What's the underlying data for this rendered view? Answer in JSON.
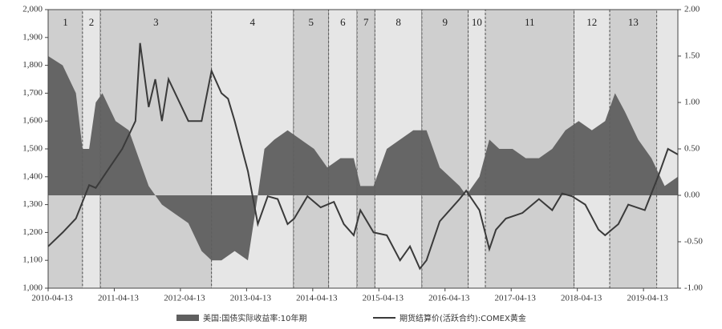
{
  "chart_data": {
    "type": "area-line",
    "xlim": [
      2010.28,
      2019.8
    ],
    "xticks": [
      {
        "value": 2010.28,
        "label": "2010-04-13"
      },
      {
        "value": 2011.28,
        "label": "2011-04-13"
      },
      {
        "value": 2012.28,
        "label": "2012-04-13"
      },
      {
        "value": 2013.28,
        "label": "2013-04-13"
      },
      {
        "value": 2014.28,
        "label": "2014-04-13"
      },
      {
        "value": 2015.28,
        "label": "2015-04-13"
      },
      {
        "value": 2016.28,
        "label": "2016-04-13"
      },
      {
        "value": 2017.28,
        "label": "2017-04-13"
      },
      {
        "value": 2018.28,
        "label": "2018-04-13"
      },
      {
        "value": 2019.28,
        "label": "2019-04-13"
      }
    ],
    "ylim": [
      1000,
      2000
    ],
    "yticks": [
      {
        "value": 1000,
        "label": "1,000"
      },
      {
        "value": 1100,
        "label": "1,100"
      },
      {
        "value": 1200,
        "label": "1,200"
      },
      {
        "value": 1300,
        "label": "1,300"
      },
      {
        "value": 1400,
        "label": "1,400"
      },
      {
        "value": 1500,
        "label": "1,500"
      },
      {
        "value": 1600,
        "label": "1,600"
      },
      {
        "value": 1700,
        "label": "1,700"
      },
      {
        "value": 1800,
        "label": "1,800"
      },
      {
        "value": 1900,
        "label": "1,900"
      },
      {
        "value": 2000,
        "label": "2,000"
      }
    ],
    "y2lim": [
      -1,
      2
    ],
    "y2ticks": [
      {
        "value": -1,
        "label": "-1.00"
      },
      {
        "value": -0.5,
        "label": "-0.50"
      },
      {
        "value": 0,
        "label": "0.00"
      },
      {
        "value": 0.5,
        "label": "0.50"
      },
      {
        "value": 1,
        "label": "1.00"
      },
      {
        "value": 1.5,
        "label": "1.50"
      },
      {
        "value": 2,
        "label": "2.00"
      }
    ],
    "periods": [
      {
        "label": "1",
        "start": 2010.28,
        "end": 2010.8
      },
      {
        "label": "2",
        "start": 2010.8,
        "end": 2011.07
      },
      {
        "label": "3",
        "start": 2011.07,
        "end": 2012.75
      },
      {
        "label": "4",
        "start": 2012.75,
        "end": 2013.99
      },
      {
        "label": "5",
        "start": 2013.99,
        "end": 2014.52
      },
      {
        "label": "6",
        "start": 2014.52,
        "end": 2014.95
      },
      {
        "label": "7",
        "start": 2014.95,
        "end": 2015.22
      },
      {
        "label": "8",
        "start": 2015.22,
        "end": 2015.93
      },
      {
        "label": "9",
        "start": 2015.93,
        "end": 2016.63
      },
      {
        "label": "10",
        "start": 2016.63,
        "end": 2016.89
      },
      {
        "label": "11",
        "start": 2016.89,
        "end": 2018.23
      },
      {
        "label": "12",
        "start": 2018.23,
        "end": 2018.77
      },
      {
        "label": "13",
        "start": 2018.77,
        "end": 2019.48
      }
    ],
    "series": [
      {
        "name": "美国:国债实际收益率:10年期",
        "kind": "area",
        "axis": "y2",
        "color": "#5f5f5f",
        "x": [
          2010.28,
          2010.5,
          2010.7,
          2010.8,
          2010.9,
          2011.0,
          2011.1,
          2011.3,
          2011.5,
          2011.7,
          2011.8,
          2011.9,
          2012.0,
          2012.2,
          2012.4,
          2012.6,
          2012.75,
          2012.9,
          2013.1,
          2013.3,
          2013.45,
          2013.55,
          2013.7,
          2013.9,
          2014.1,
          2014.3,
          2014.5,
          2014.7,
          2014.9,
          2015.0,
          2015.2,
          2015.4,
          2015.6,
          2015.8,
          2016.0,
          2016.2,
          2016.5,
          2016.6,
          2016.8,
          2016.95,
          2017.1,
          2017.3,
          2017.5,
          2017.7,
          2017.9,
          2018.1,
          2018.3,
          2018.5,
          2018.7,
          2018.85,
          2019.0,
          2019.2,
          2019.4,
          2019.6,
          2019.8
        ],
        "values": [
          1.5,
          1.4,
          1.1,
          0.5,
          0.5,
          1.0,
          1.1,
          0.8,
          0.7,
          0.3,
          0.1,
          0.0,
          -0.1,
          -0.2,
          -0.3,
          -0.6,
          -0.7,
          -0.7,
          -0.6,
          -0.7,
          0.0,
          0.5,
          0.6,
          0.7,
          0.6,
          0.5,
          0.3,
          0.4,
          0.4,
          0.1,
          0.1,
          0.5,
          0.6,
          0.7,
          0.7,
          0.3,
          0.1,
          0.0,
          0.2,
          0.6,
          0.5,
          0.5,
          0.4,
          0.4,
          0.5,
          0.7,
          0.8,
          0.7,
          0.8,
          1.1,
          0.9,
          0.6,
          0.4,
          0.1,
          0.2
        ]
      },
      {
        "name": "期货结算价(活跃合约):COMEX黄金",
        "kind": "line",
        "axis": "y",
        "color": "#3a3a3a",
        "x": [
          2010.28,
          2010.5,
          2010.7,
          2010.9,
          2011.0,
          2011.2,
          2011.4,
          2011.6,
          2011.67,
          2011.8,
          2011.9,
          2012.0,
          2012.1,
          2012.3,
          2012.4,
          2012.6,
          2012.75,
          2012.9,
          2013.0,
          2013.1,
          2013.3,
          2013.45,
          2013.6,
          2013.75,
          2013.9,
          2014.0,
          2014.2,
          2014.4,
          2014.6,
          2014.75,
          2014.9,
          2015.0,
          2015.2,
          2015.4,
          2015.6,
          2015.75,
          2015.9,
          2016.0,
          2016.2,
          2016.5,
          2016.6,
          2016.8,
          2016.95,
          2017.05,
          2017.2,
          2017.45,
          2017.7,
          2017.9,
          2018.05,
          2018.2,
          2018.4,
          2018.6,
          2018.7,
          2018.9,
          2019.05,
          2019.3,
          2019.5,
          2019.65,
          2019.8
        ],
        "values": [
          1150,
          1200,
          1250,
          1370,
          1360,
          1430,
          1500,
          1600,
          1880,
          1650,
          1750,
          1600,
          1750,
          1650,
          1600,
          1600,
          1780,
          1700,
          1680,
          1600,
          1420,
          1230,
          1330,
          1320,
          1230,
          1250,
          1330,
          1290,
          1310,
          1230,
          1190,
          1280,
          1200,
          1190,
          1100,
          1150,
          1070,
          1100,
          1240,
          1320,
          1350,
          1280,
          1140,
          1210,
          1250,
          1270,
          1320,
          1280,
          1340,
          1330,
          1300,
          1210,
          1190,
          1230,
          1300,
          1280,
          1400,
          1500,
          1480
        ]
      }
    ]
  }
}
